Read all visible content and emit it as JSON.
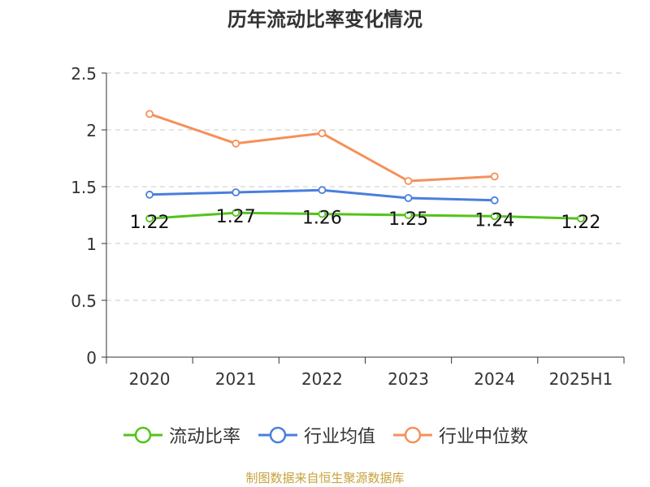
{
  "chart_data": {
    "type": "line",
    "title": "历年流动比率变化情况",
    "categories": [
      "2020",
      "2021",
      "2022",
      "2023",
      "2024",
      "2025H1"
    ],
    "ylim": [
      0,
      2.5
    ],
    "yticks": [
      "0",
      "0.5",
      "1",
      "1.5",
      "2",
      "2.5"
    ],
    "grid": true,
    "legend_position": "bottom",
    "series": [
      {
        "name": "流动比率",
        "color": "#52c41a",
        "values": [
          1.22,
          1.27,
          1.26,
          1.25,
          1.24,
          1.22
        ],
        "labels": [
          "1.22",
          "1.27",
          "1.26",
          "1.25",
          "1.24",
          "1.22"
        ]
      },
      {
        "name": "行业均值",
        "color": "#4a7fdb",
        "values": [
          1.43,
          1.45,
          1.47,
          1.4,
          1.38,
          null
        ]
      },
      {
        "name": "行业中位数",
        "color": "#f5905a",
        "values": [
          2.14,
          1.88,
          1.97,
          1.55,
          1.59,
          null
        ]
      }
    ]
  },
  "source_note": "制图数据来自恒生聚源数据库"
}
